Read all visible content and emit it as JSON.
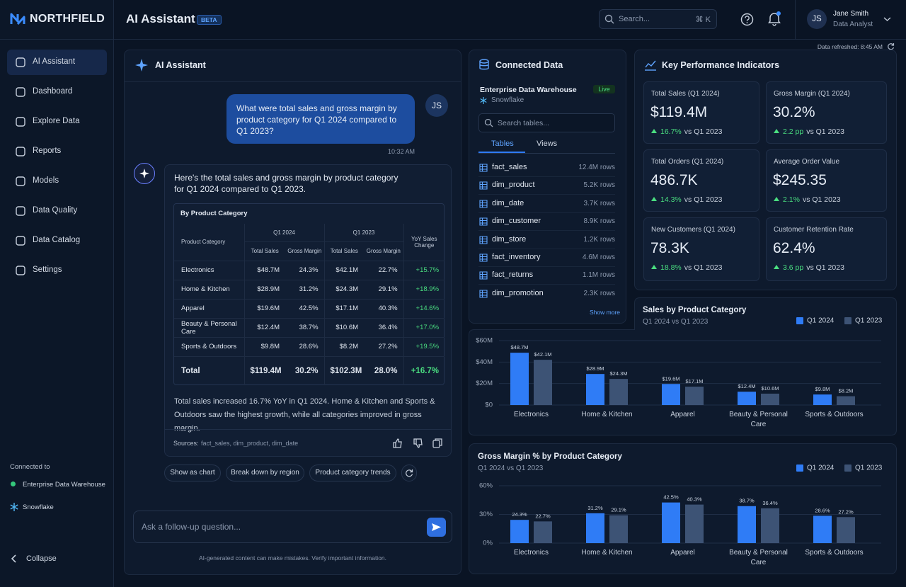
{
  "brand": "NORTHFIELD",
  "header": {
    "title": "AI Assistant",
    "badge": "BETA",
    "search_placeholder": "Search...",
    "search_shortcut": "⌘ K",
    "user": {
      "initials": "JS",
      "name": "Jane Smith",
      "role": "Data Analyst"
    },
    "data_refreshed": "Data refreshed: 8:45 AM"
  },
  "nav": {
    "items": [
      "AI Assistant",
      "Dashboard",
      "Explore Data",
      "Reports",
      "Models",
      "Data Quality",
      "Data Catalog",
      "Settings"
    ],
    "connected_label": "Connected to",
    "connections": [
      "Enterprise Data Warehouse",
      "Snowflake"
    ],
    "collapse": "Collapse"
  },
  "chat": {
    "title": "AI Assistant",
    "user_message": "What were total sales and gross margin by product category for Q1 2024 compared to Q1 2023?",
    "user_initials": "JS",
    "time": "10:32 AM",
    "answer_intro": "Here's the total sales and gross margin by product category for Q1 2024 compared to Q1 2023.",
    "table": {
      "title": "By Product Category",
      "columns": {
        "category": "Product Category",
        "group_a": "Q1 2024",
        "group_b": "Q1 2023",
        "change": "YoY Sales Change",
        "sub": [
          "Total Sales",
          "Gross Margin",
          "Total Sales",
          "Gross Margin"
        ]
      },
      "rows": [
        [
          "Electronics",
          "$48.7M",
          "24.3%",
          "$42.1M",
          "22.7%",
          "+15.7%"
        ],
        [
          "Home & Kitchen",
          "$28.9M",
          "31.2%",
          "$24.3M",
          "29.1%",
          "+18.9%"
        ],
        [
          "Apparel",
          "$19.6M",
          "42.5%",
          "$17.1M",
          "40.3%",
          "+14.6%"
        ],
        [
          "Beauty & Personal Care",
          "$12.4M",
          "38.7%",
          "$10.6M",
          "36.4%",
          "+17.0%"
        ],
        [
          "Sports & Outdoors",
          "$9.8M",
          "28.6%",
          "$8.2M",
          "27.2%",
          "+19.5%"
        ]
      ],
      "total": [
        "Total",
        "$119.4M",
        "30.2%",
        "$102.3M",
        "28.0%",
        "+16.7%"
      ]
    },
    "summary": "Total sales increased 16.7% YoY in Q1 2024. Home & Kitchen and Sports & Outdoors saw the highest growth, while all categories improved in gross margin.",
    "sources_label": "Sources:",
    "sources": "fact_sales, dim_product, dim_date",
    "suggestions": [
      "Show as chart",
      "Break down by region",
      "Product category trends"
    ],
    "input_placeholder": "Ask a follow-up question...",
    "disclaimer": "AI-generated content can make mistakes. Verify important information."
  },
  "connected_data": {
    "title": "Connected Data",
    "warehouse": "Enterprise Data Warehouse",
    "status": "Live",
    "source": "Snowflake",
    "search_placeholder": "Search tables...",
    "tabs": [
      "Tables",
      "Views"
    ],
    "tables": [
      {
        "name": "fact_sales",
        "rows": "12.4M rows"
      },
      {
        "name": "dim_product",
        "rows": "5.2K rows"
      },
      {
        "name": "dim_date",
        "rows": "3.7K rows"
      },
      {
        "name": "dim_customer",
        "rows": "8.9K rows"
      },
      {
        "name": "dim_store",
        "rows": "1.2K rows"
      },
      {
        "name": "fact_inventory",
        "rows": "4.6M rows"
      },
      {
        "name": "fact_returns",
        "rows": "1.1M rows"
      },
      {
        "name": "dim_promotion",
        "rows": "2.3K rows"
      }
    ],
    "show_more": "Show more"
  },
  "kpis": {
    "title": "Key Performance Indicators",
    "comparison": "vs Q1 2023",
    "items": [
      {
        "label": "Total Sales (Q1 2024)",
        "value": "$119.4M",
        "change": "16.7%"
      },
      {
        "label": "Gross Margin (Q1 2024)",
        "value": "30.2%",
        "change": "2.2 pp"
      },
      {
        "label": "Total Orders (Q1 2024)",
        "value": "486.7K",
        "change": "14.3%"
      },
      {
        "label": "Average Order Value",
        "value": "$245.35",
        "change": "2.1%"
      },
      {
        "label": "New Customers (Q1 2024)",
        "value": "78.3K",
        "change": "18.8%"
      },
      {
        "label": "Customer Retention Rate",
        "value": "62.4%",
        "change": "3.6 pp"
      }
    ]
  },
  "chart_data": [
    {
      "type": "bar",
      "title": "Sales by Product Category",
      "subtitle": "Q1 2024 vs Q1 2023",
      "categories": [
        "Electronics",
        "Home & Kitchen",
        "Apparel",
        "Beauty & Personal Care",
        "Sports & Outdoors"
      ],
      "series": [
        {
          "name": "Q1 2024",
          "color": "#2f7cf6",
          "values": [
            48.7,
            28.9,
            19.6,
            12.4,
            9.8
          ],
          "value_labels": [
            "$48.7M",
            "$28.9M",
            "$19.6M",
            "$12.4M",
            "$9.8M"
          ]
        },
        {
          "name": "Q1 2023",
          "color": "#3d5375",
          "values": [
            42.1,
            24.3,
            17.1,
            10.6,
            8.2
          ],
          "value_labels": [
            "$42.1M",
            "$24.3M",
            "$17.1M",
            "$10.6M",
            "$8.2M"
          ]
        }
      ],
      "ylim": [
        0,
        60
      ],
      "yticks": [
        {
          "value": 0,
          "label": "$0"
        },
        {
          "value": 20,
          "label": "$20M"
        },
        {
          "value": 40,
          "label": "$40M"
        },
        {
          "value": 60,
          "label": "$60M"
        }
      ],
      "grid": true,
      "legend": "top-right"
    },
    {
      "type": "bar",
      "title": "Gross Margin % by Product Category",
      "subtitle": "Q1 2024 vs Q1 2023",
      "categories": [
        "Electronics",
        "Home & Kitchen",
        "Apparel",
        "Beauty & Personal Care",
        "Sports & Outdoors"
      ],
      "series": [
        {
          "name": "Q1 2024",
          "color": "#2f7cf6",
          "values": [
            24.3,
            31.2,
            42.5,
            38.7,
            28.6
          ],
          "value_labels": [
            "24.3%",
            "31.2%",
            "42.5%",
            "38.7%",
            "28.6%"
          ]
        },
        {
          "name": "Q1 2023",
          "color": "#3d5375",
          "values": [
            22.7,
            29.1,
            40.3,
            36.4,
            27.2
          ],
          "value_labels": [
            "22.7%",
            "29.1%",
            "40.3%",
            "36.4%",
            "27.2%"
          ]
        }
      ],
      "ylim": [
        0,
        60
      ],
      "yticks": [
        {
          "value": 0,
          "label": "0%"
        },
        {
          "value": 30,
          "label": "30%"
        },
        {
          "value": 60,
          "label": "60%"
        }
      ],
      "grid": true,
      "legend": "top-right"
    }
  ]
}
